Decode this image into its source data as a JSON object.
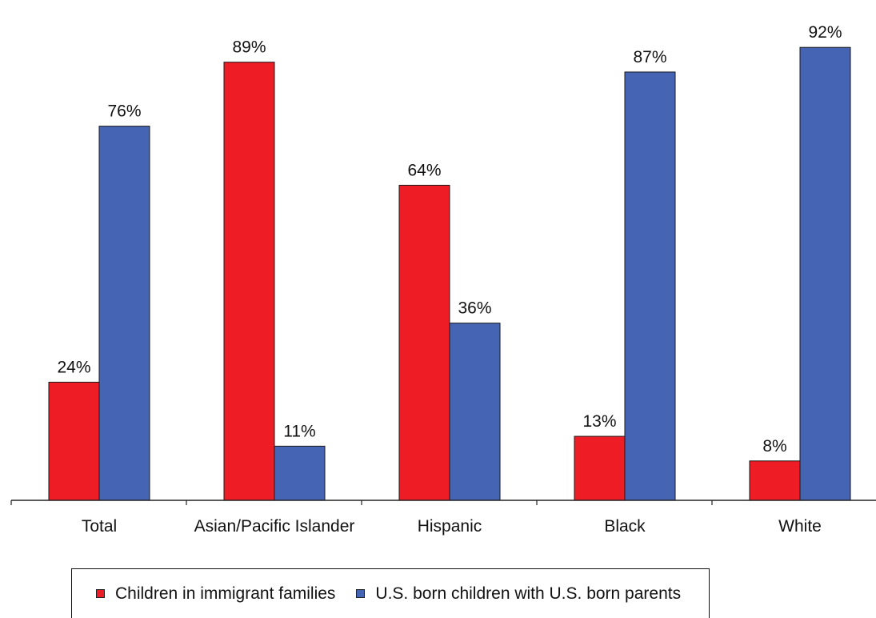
{
  "chart_data": {
    "type": "bar",
    "title": "",
    "xlabel": "",
    "ylabel": "",
    "ylim": [
      0,
      100
    ],
    "grid": false,
    "legend_position": "bottom",
    "categories": [
      "Total",
      "Asian/Pacific Islander",
      "Hispanic",
      "Black",
      "White"
    ],
    "series": [
      {
        "name": "Children in immigrant families",
        "color": "#ee1c24",
        "values": [
          24,
          89,
          64,
          13,
          8
        ],
        "labels": [
          "24%",
          "89%",
          "64%",
          "13%",
          "8%"
        ]
      },
      {
        "name": "U.S. born children with U.S. born parents",
        "color": "#4664b4",
        "values": [
          76,
          11,
          36,
          87,
          92
        ],
        "labels": [
          "76%",
          "11%",
          "36%",
          "87%",
          "92%"
        ]
      }
    ]
  }
}
